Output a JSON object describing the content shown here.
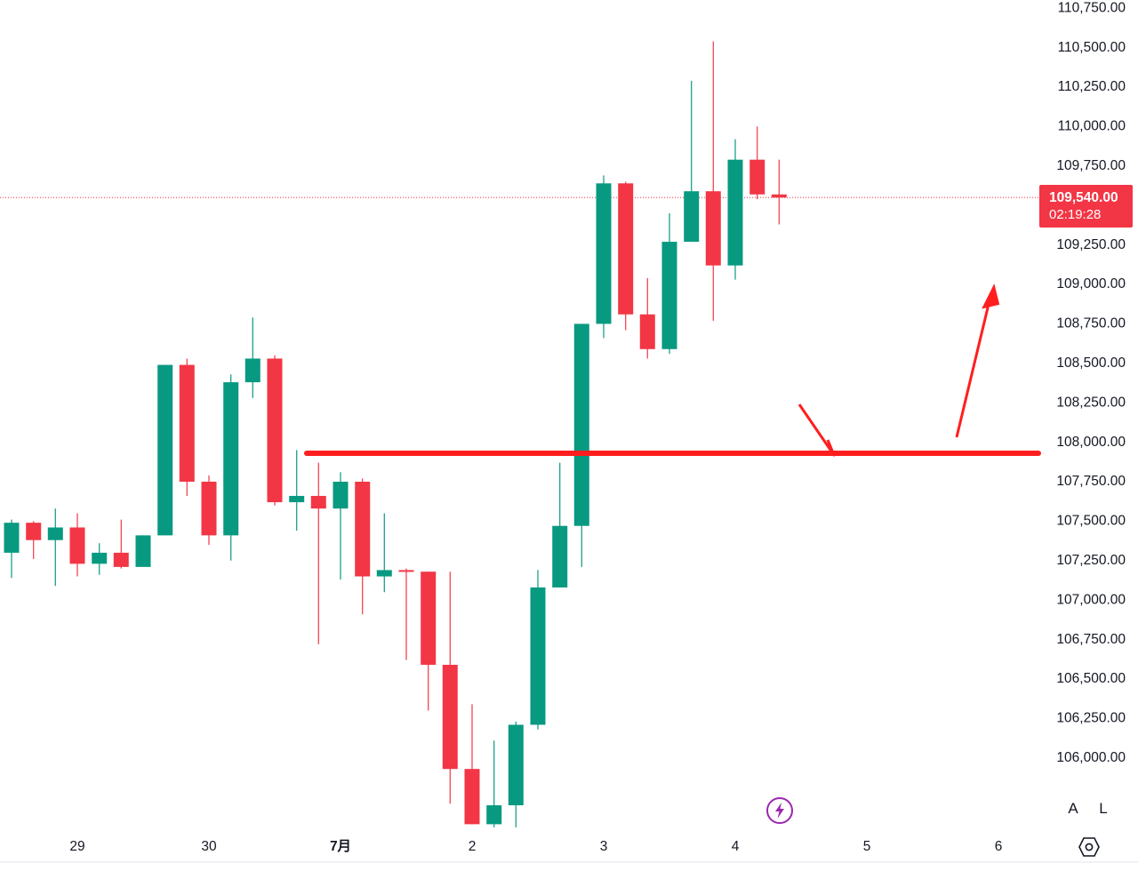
{
  "chart_data": {
    "type": "candlestick",
    "x_axis": {
      "ticks": [
        "29",
        "30",
        "7月",
        "2",
        "3",
        "4",
        "5",
        "6"
      ],
      "bold_ticks": [
        "7月"
      ]
    },
    "y_axis": {
      "ticks": [
        "110,750.00",
        "110,500.00",
        "110,250.00",
        "110,000.00",
        "109,750.00",
        "109,250.00",
        "109,000.00",
        "108,750.00",
        "108,500.00",
        "108,250.00",
        "108,000.00",
        "107,750.00",
        "107,500.00",
        "107,250.00",
        "107,000.00",
        "106,750.00",
        "106,500.00",
        "106,250.00",
        "106,000.00"
      ],
      "tick_values": [
        110750,
        110500,
        110250,
        110000,
        109750,
        109250,
        109000,
        108750,
        108500,
        108250,
        108000,
        107750,
        107500,
        107250,
        107000,
        106750,
        106500,
        106250,
        106000
      ],
      "range": [
        105550,
        110780
      ]
    },
    "colors": {
      "up": "#089981",
      "down": "#f23645",
      "annotation": "#ff1e1e",
      "price_line": "#f23645"
    },
    "candles": [
      {
        "t": 0.0,
        "o": 107290,
        "h": 107500,
        "l": 107130,
        "c": 107480
      },
      {
        "t": 0.167,
        "o": 107480,
        "h": 107490,
        "l": 107250,
        "c": 107370
      },
      {
        "t": 0.333,
        "o": 107370,
        "h": 107570,
        "l": 107080,
        "c": 107450
      },
      {
        "t": 0.5,
        "o": 107450,
        "h": 107540,
        "l": 107140,
        "c": 107220
      },
      {
        "t": 0.667,
        "o": 107220,
        "h": 107350,
        "l": 107150,
        "c": 107290
      },
      {
        "t": 0.833,
        "o": 107290,
        "h": 107500,
        "l": 107190,
        "c": 107200
      },
      {
        "t": 1.0,
        "o": 107200,
        "h": 107400,
        "l": 107200,
        "c": 107400
      },
      {
        "t": 1.167,
        "o": 107400,
        "h": 108480,
        "l": 107400,
        "c": 108480
      },
      {
        "t": 1.333,
        "o": 108480,
        "h": 108520,
        "l": 107650,
        "c": 107740
      },
      {
        "t": 1.5,
        "o": 107740,
        "h": 107780,
        "l": 107340,
        "c": 107400
      },
      {
        "t": 1.667,
        "o": 107400,
        "h": 108420,
        "l": 107240,
        "c": 108370
      },
      {
        "t": 1.833,
        "o": 108370,
        "h": 108780,
        "l": 108270,
        "c": 108520
      },
      {
        "t": 2.0,
        "o": 108520,
        "h": 108540,
        "l": 107590,
        "c": 107610
      },
      {
        "t": 2.167,
        "o": 107610,
        "h": 107940,
        "l": 107430,
        "c": 107650
      },
      {
        "t": 2.333,
        "o": 107650,
        "h": 107860,
        "l": 106710,
        "c": 107570
      },
      {
        "t": 2.5,
        "o": 107570,
        "h": 107800,
        "l": 107120,
        "c": 107740
      },
      {
        "t": 2.667,
        "o": 107740,
        "h": 107760,
        "l": 106900,
        "c": 107140
      },
      {
        "t": 2.833,
        "o": 107140,
        "h": 107540,
        "l": 107040,
        "c": 107180
      },
      {
        "t": 3.0,
        "o": 107180,
        "h": 107190,
        "l": 106610,
        "c": 107170
      },
      {
        "t": 3.167,
        "o": 107170,
        "h": 107170,
        "l": 106290,
        "c": 106580
      },
      {
        "t": 3.333,
        "o": 106580,
        "h": 107170,
        "l": 105700,
        "c": 105920
      },
      {
        "t": 3.5,
        "o": 105920,
        "h": 106330,
        "l": 105570,
        "c": 105570
      },
      {
        "t": 3.667,
        "o": 105570,
        "h": 106100,
        "l": 105550,
        "c": 105690
      },
      {
        "t": 3.833,
        "o": 105690,
        "h": 106220,
        "l": 105550,
        "c": 106200
      },
      {
        "t": 4.0,
        "o": 106200,
        "h": 107180,
        "l": 106170,
        "c": 107070
      },
      {
        "t": 4.167,
        "o": 107070,
        "h": 107860,
        "l": 107070,
        "c": 107460
      },
      {
        "t": 4.333,
        "o": 107460,
        "h": 108740,
        "l": 107200,
        "c": 108740
      },
      {
        "t": 4.5,
        "o": 108740,
        "h": 109680,
        "l": 108650,
        "c": 109630
      },
      {
        "t": 4.667,
        "o": 109630,
        "h": 109640,
        "l": 108700,
        "c": 108800
      },
      {
        "t": 4.833,
        "o": 108800,
        "h": 109030,
        "l": 108520,
        "c": 108580
      },
      {
        "t": 5.0,
        "o": 108580,
        "h": 109440,
        "l": 108550,
        "c": 109260
      },
      {
        "t": 5.167,
        "o": 109260,
        "h": 110280,
        "l": 109260,
        "c": 109580
      },
      {
        "t": 5.333,
        "o": 109580,
        "h": 110530,
        "l": 108760,
        "c": 109110
      },
      {
        "t": 5.5,
        "o": 109110,
        "h": 109910,
        "l": 109020,
        "c": 109780
      },
      {
        "t": 5.667,
        "o": 109780,
        "h": 109990,
        "l": 109530,
        "c": 109560
      },
      {
        "t": 5.833,
        "o": 109560,
        "h": 109780,
        "l": 109370,
        "c": 109540
      }
    ],
    "current_price": 109540,
    "current_price_label": "109,540.00",
    "countdown_label": "02:19:28",
    "annotation": {
      "horizontal_line_price": 107920,
      "horizontal_line_t_range": [
        1.767,
        5.833
      ]
    }
  },
  "controls": {
    "auto_label": "A",
    "log_label": "L"
  }
}
